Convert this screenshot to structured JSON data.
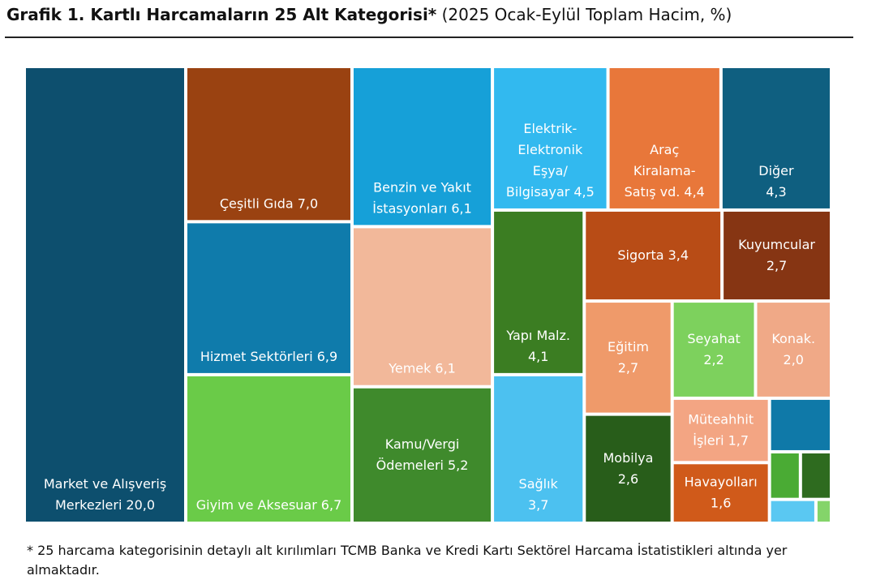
{
  "chart_data": {
    "type": "treemap",
    "title": "Grafik 1. Kartlı Harcamaların 25 Alt Kategorisi*",
    "subtitle": "(2025 Ocak-Eylül Toplam Hacim, %)",
    "categories": [
      [
        "Market ve Alışveriş",
        "Merkezleri"
      ],
      [
        "Çeşitli Gıda"
      ],
      [
        "Hizmet Sektörleri"
      ],
      [
        "Giyim ve Aksesuar"
      ],
      [
        "Benzin ve Yakıt",
        "İstasyonları"
      ],
      [
        "Yemek"
      ],
      [
        "Kamu/Vergi",
        "Ödemeleri"
      ],
      [
        "Elektrik-",
        "Elektronik",
        "Eşya/",
        "Bilgisayar"
      ],
      [
        "Araç",
        "Kiralama-",
        "Satış vd."
      ],
      [
        "Diğer"
      ],
      [
        "Yapı Malz."
      ],
      [
        "Sağlık"
      ],
      [
        "Sigorta"
      ],
      [
        "Kuyumcular"
      ],
      [
        "Eğitim"
      ],
      [
        "Mobilya"
      ],
      [
        "Seyahat"
      ],
      [
        "Konak."
      ],
      [
        "Müteahhit",
        "İşleri"
      ],
      [
        "Havayolları"
      ],
      null,
      null,
      null,
      null,
      null
    ],
    "values": [
      20.0,
      7.0,
      6.9,
      6.7,
      6.1,
      6.1,
      5.2,
      4.5,
      4.4,
      4.3,
      4.1,
      3.7,
      3.4,
      2.7,
      2.7,
      2.6,
      2.2,
      2.0,
      1.7,
      1.6,
      0.9,
      0.4,
      0.4,
      0.3,
      0.1
    ],
    "value_labels": [
      "20,0",
      "7,0",
      "6,9",
      "6,7",
      "6,1",
      "6,1",
      "5,2",
      "4,5",
      "4,4",
      "4,3",
      "4,1",
      "3,7",
      "3,4",
      "2,7",
      "2,7",
      "2,6",
      "2,2",
      "2,0",
      "1,7",
      "1,6",
      null,
      null,
      null,
      null,
      null
    ],
    "colors": [
      "#0d4f6e",
      "#9a4211",
      "#0f7bab",
      "#6acb48",
      "#16a0d8",
      "#f2b89a",
      "#3f8a2c",
      "#32b9ef",
      "#e8773a",
      "#0f5f80",
      "#3b7d22",
      "#4cc1f0",
      "#b84c16",
      "#863513",
      "#ef9a6a",
      "#285d1a",
      "#7dd15d",
      "#f0a987",
      "#f3a583",
      "#d05a1a",
      "#0f79a8",
      "#4aab34",
      "#2e6b1f",
      "#5ac8f2",
      "#84d46a"
    ],
    "footnote": "* 25 harcama kategorisinin detaylı alt kırılımları TCMB Banka ve Kredi Kartı Sektörel Harcama İstatistikleri altında yer almaktadır."
  }
}
